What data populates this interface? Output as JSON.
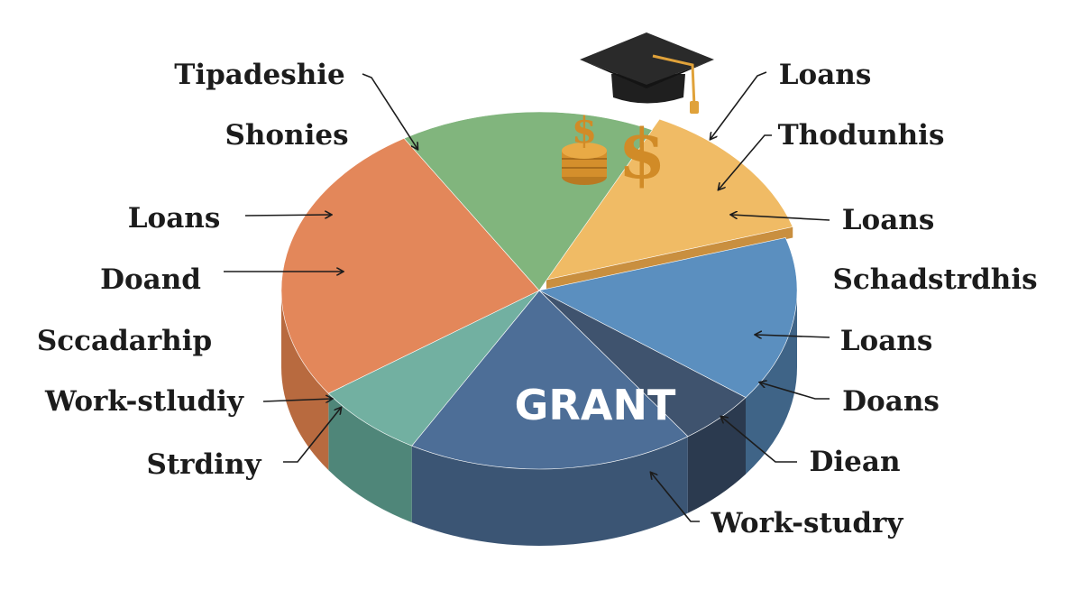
{
  "chart_data": {
    "type": "pie",
    "center_label": "GRANT",
    "slices": [
      {
        "color": "#f0bb65",
        "side_color": "#c98f3f",
        "exploded": true,
        "value": 13
      },
      {
        "color": "#5b8fbf",
        "side_color": "#3f6487",
        "value": 15
      },
      {
        "color": "#3f536e",
        "side_color": "#2b3a4f",
        "value": 5
      },
      {
        "color": "#4d6e97",
        "side_color": "#3b5574",
        "value": 18
      },
      {
        "color": "#72b0a1",
        "side_color": "#4f8679",
        "value": 7
      },
      {
        "color": "#e3875a",
        "side_color": "#b86a3f",
        "value": 26
      },
      {
        "color": "#81b57d",
        "side_color": "#5d8f59",
        "value": 16
      }
    ],
    "labels_left": [
      "Tipadeshie",
      "Shonies",
      "Loans",
      "Doand",
      "Sccadarhip",
      "Work-stludiy",
      "Strdiny"
    ],
    "labels_right": [
      "Loans",
      "Thodunhis",
      "Loans",
      "Schadstrdhis",
      "Loans",
      "Doans",
      "Diean",
      "Work-studry"
    ],
    "icons": [
      "graduation-cap-icon",
      "dollar-sign-icon",
      "coin-stack-icon"
    ]
  }
}
